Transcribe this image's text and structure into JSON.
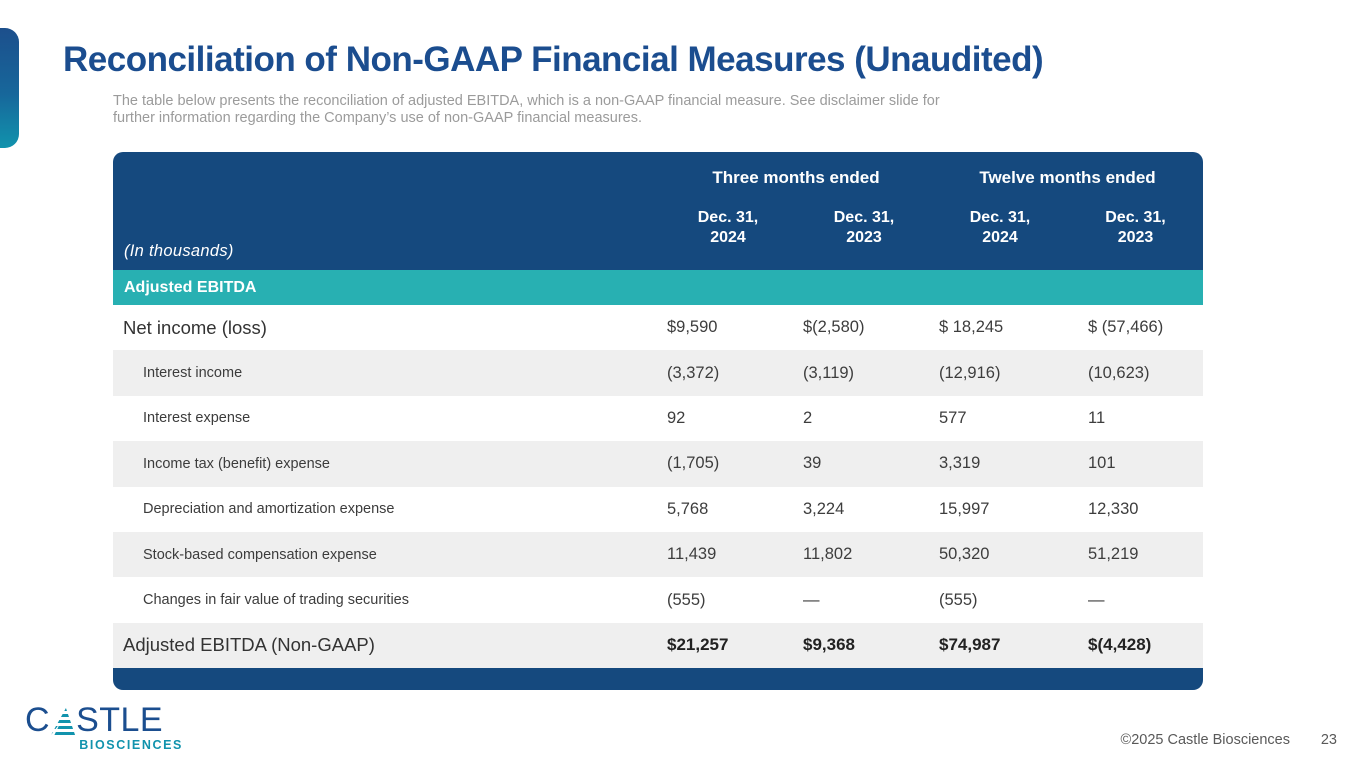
{
  "slide": {
    "title": "Reconciliation of Non-GAAP Financial Measures (Unaudited)",
    "subtitle": "The table below presents the reconciliation of adjusted EBITDA, which is a non-GAAP financial measure. See disclaimer slide for\nfurther information regarding the Company’s use of non-GAAP financial measures.",
    "copyright": "©2025 Castle Biosciences",
    "page_number": "23"
  },
  "logo": {
    "word_left": "C",
    "word_right": "STLE",
    "subtext": "BIOSCIENCES"
  },
  "colors": {
    "title_blue": "#1b4d8f",
    "header_blue": "#15497e",
    "teal": "#28b0b2",
    "row_gray": "#efefef"
  },
  "table": {
    "units_label": "(In thousands)",
    "group_headers": [
      "Three months ended",
      "Twelve months ended"
    ],
    "col_headers": [
      "Dec. 31,\n2024",
      "Dec. 31,\n2023",
      "Dec. 31,\n2024",
      "Dec. 31,\n2023"
    ],
    "section_header": "Adjusted EBITDA",
    "rows": [
      {
        "style": "primary",
        "label": "Net income (loss)",
        "values": [
          "$9,590",
          "$(2,580)",
          "$ 18,245",
          "$ (57,466)"
        ]
      },
      {
        "style": "sub",
        "label": "Interest income",
        "values": [
          "(3,372)",
          "(3,119)",
          "(12,916)",
          "(10,623)"
        ]
      },
      {
        "style": "sub",
        "label": "Interest expense",
        "values": [
          "92",
          "2",
          "577",
          "11"
        ]
      },
      {
        "style": "sub",
        "label": "Income tax (benefit) expense",
        "values": [
          "(1,705)",
          "39",
          "3,319",
          "101"
        ]
      },
      {
        "style": "sub",
        "label": "Depreciation and amortization expense",
        "values": [
          "5,768",
          "3,224",
          "15,997",
          "12,330"
        ]
      },
      {
        "style": "sub",
        "label": "Stock-based compensation expense",
        "values": [
          "11,439",
          "11,802",
          "50,320",
          "51,219"
        ]
      },
      {
        "style": "sub",
        "label": "Changes in fair value of trading securities",
        "values": [
          "(555)",
          "—",
          "(555)",
          "—"
        ]
      },
      {
        "style": "total",
        "label": "Adjusted EBITDA (Non-GAAP)",
        "values": [
          "$21,257",
          "$9,368",
          "$74,987",
          "$(4,428)"
        ]
      }
    ]
  }
}
